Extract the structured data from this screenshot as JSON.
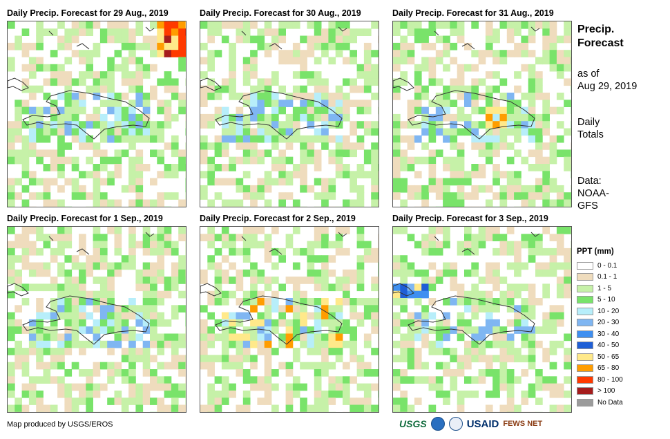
{
  "panels": [
    {
      "title": "Daily Precip. Forecast for 29 Aug., 2019",
      "seed": 11,
      "hot": "ne"
    },
    {
      "title": "Daily Precip. Forecast for 30 Aug., 2019",
      "seed": 23,
      "hot": "none"
    },
    {
      "title": "Daily Precip. Forecast for 31 Aug., 2019",
      "seed": 37,
      "hot": "center"
    },
    {
      "title": "Daily Precip. Forecast for 1 Sep., 2019",
      "seed": 41,
      "hot": "none"
    },
    {
      "title": "Daily Precip. Forecast for 2 Sep., 2019",
      "seed": 53,
      "hot": "island"
    },
    {
      "title": "Daily Precip. Forecast for 3 Sep., 2019",
      "seed": 67,
      "hot": "west"
    }
  ],
  "side": {
    "title_line1": "Precip.",
    "title_line2": "Forecast",
    "asof_line1": "as of",
    "asof_line2": "Aug 29, 2019",
    "daily_line1": "Daily",
    "daily_line2": "Totals",
    "data_line1": "Data:",
    "data_line2": "NOAA-",
    "data_line3": "GFS"
  },
  "legend": {
    "title": "PPT (mm)",
    "items": [
      {
        "label": "0 - 0.1",
        "color": "#ffffff"
      },
      {
        "label": "0.1 - 1",
        "color": "#efdcbd"
      },
      {
        "label": "1 - 5",
        "color": "#c6f1a8"
      },
      {
        "label": "5 - 10",
        "color": "#79e36a"
      },
      {
        "label": "10 - 20",
        "color": "#b7eefa"
      },
      {
        "label": "20 - 30",
        "color": "#7fb6f2"
      },
      {
        "label": "30 - 40",
        "color": "#3f8ff0"
      },
      {
        "label": "40 - 50",
        "color": "#1f5fd6"
      },
      {
        "label": "50 - 65",
        "color": "#ffe98a"
      },
      {
        "label": "65 - 80",
        "color": "#ff9d00"
      },
      {
        "label": "80 - 100",
        "color": "#ff3a00"
      },
      {
        "label": "> 100",
        "color": "#a51c1c"
      },
      {
        "label": "No Data",
        "color": "#9b9b9b"
      }
    ]
  },
  "footer": {
    "credit": "Map produced by USGS/EROS"
  },
  "logos": {
    "usgs": "USGS",
    "usaid": "USAID",
    "fews": "FEWS NET"
  }
}
